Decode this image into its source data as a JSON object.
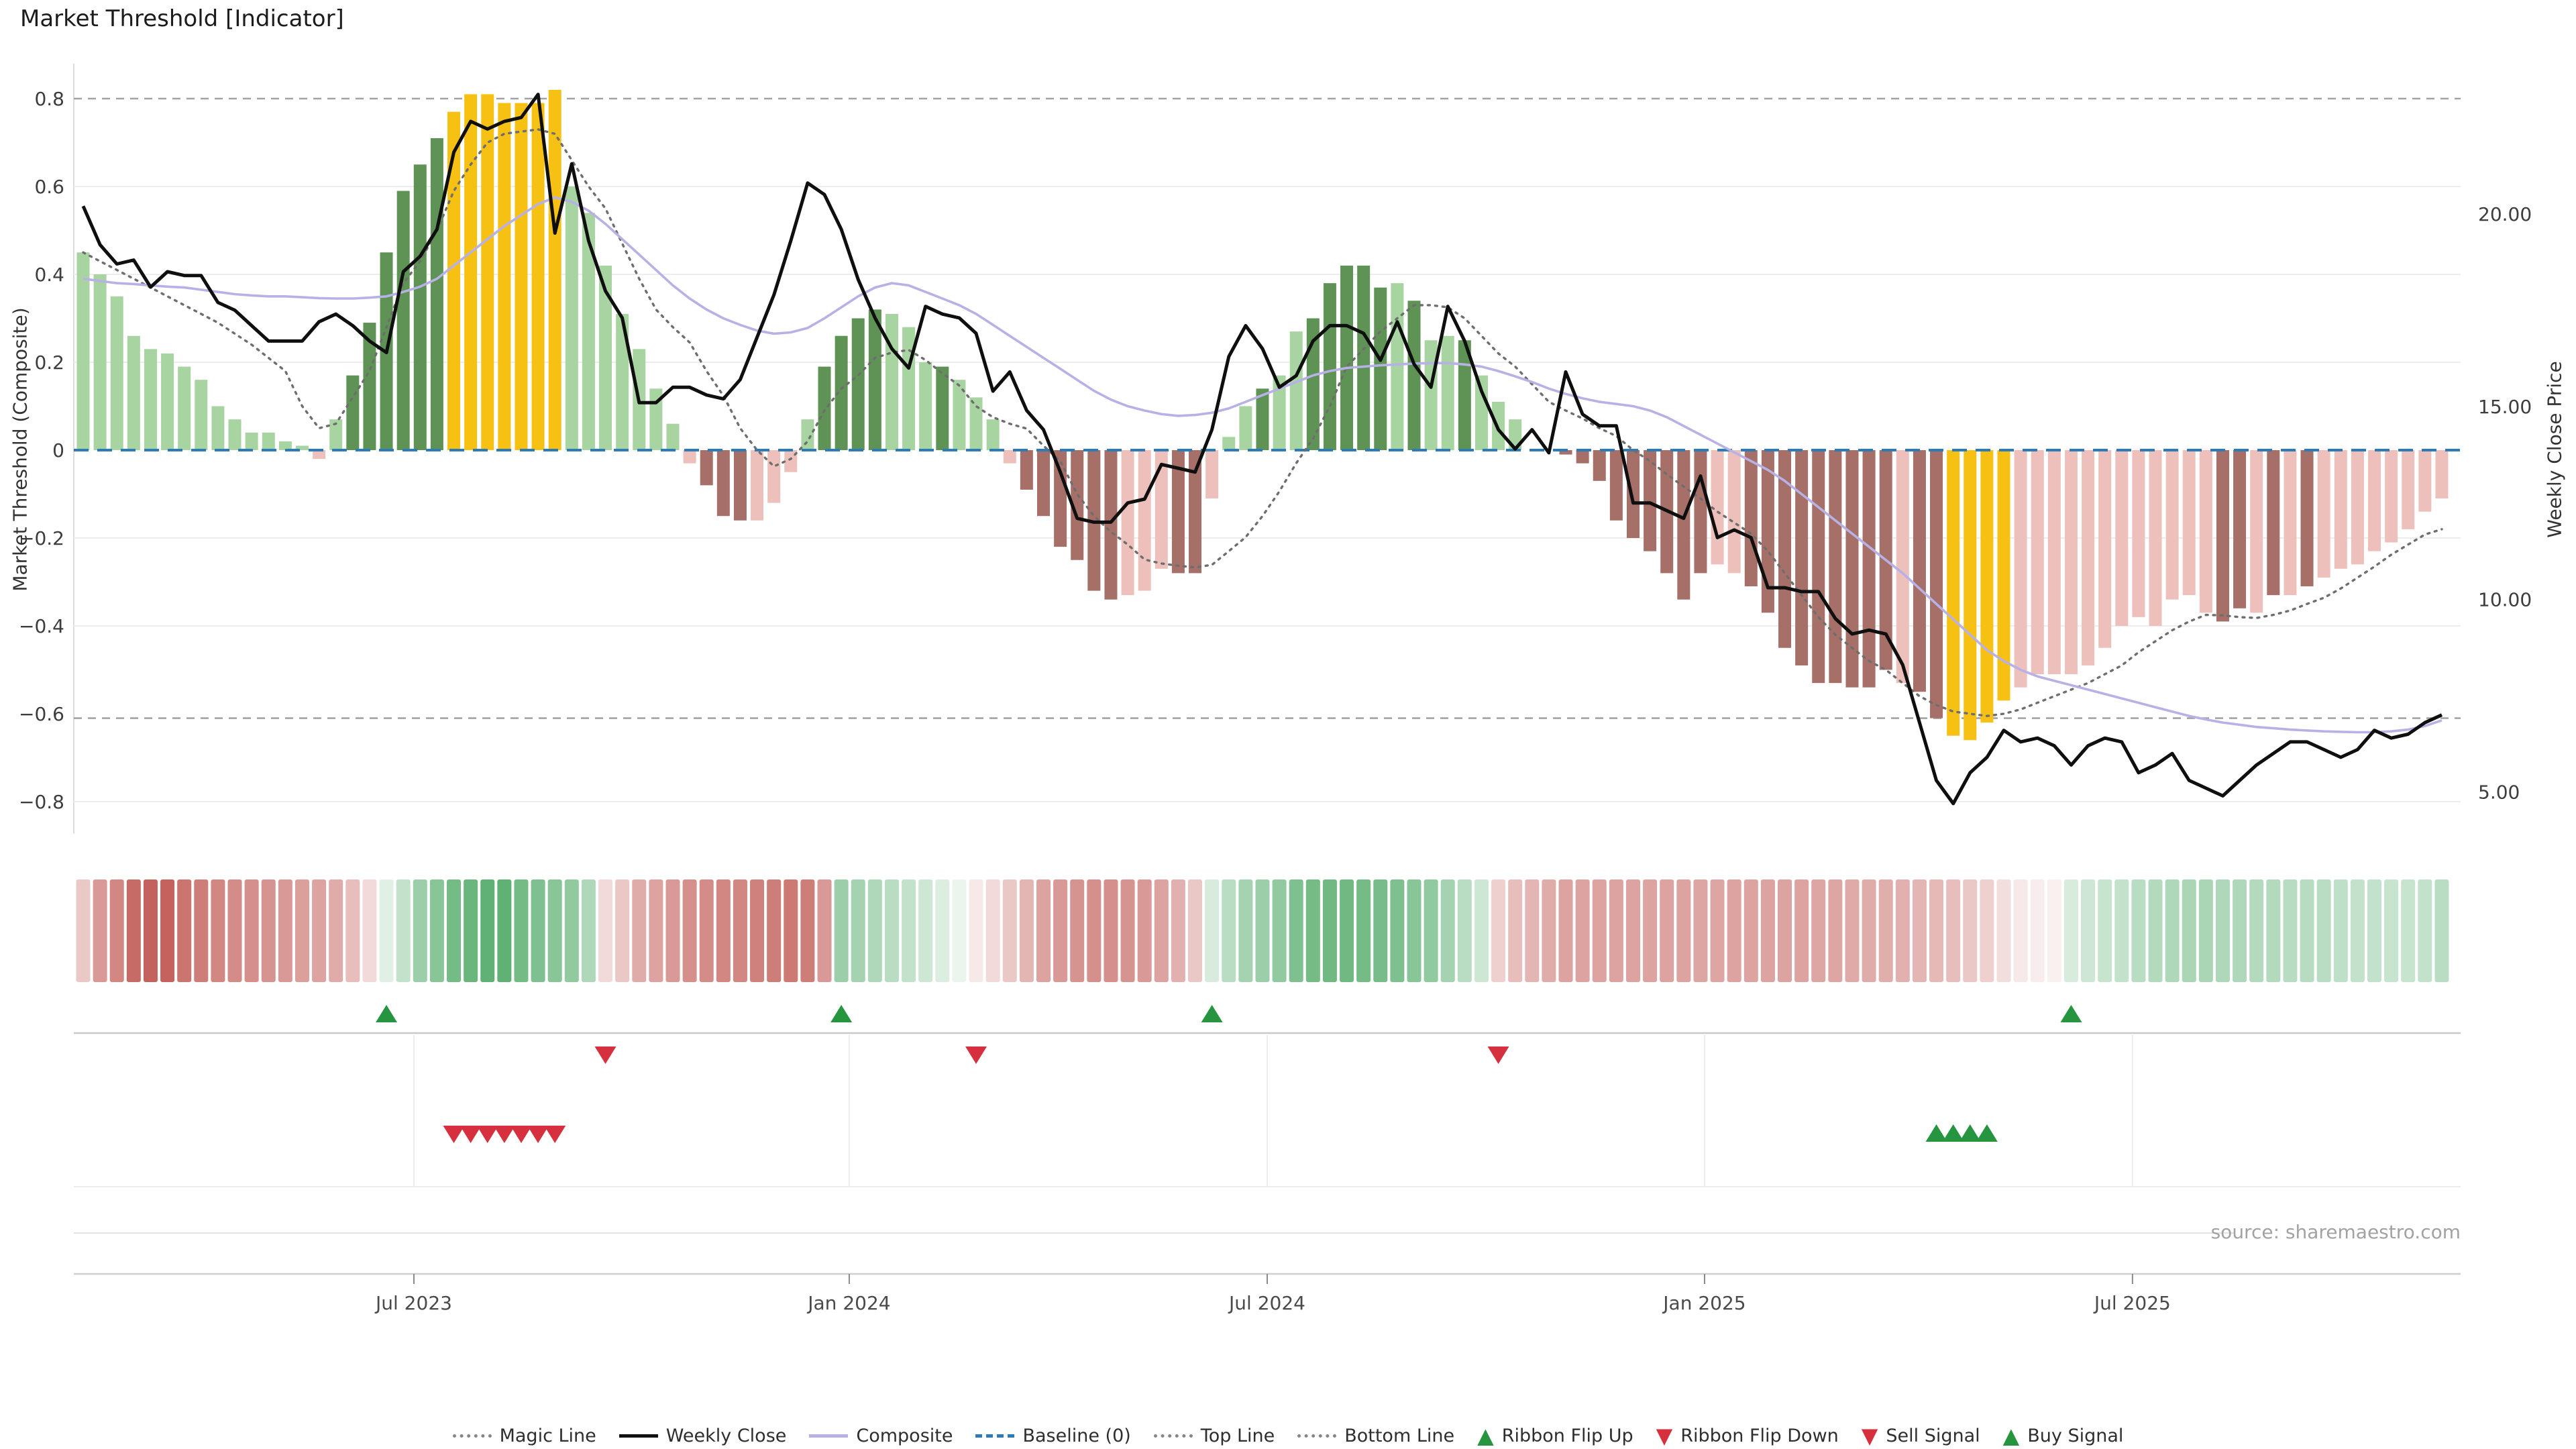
{
  "title": "Market Threshold [Indicator]",
  "source_note": "source: sharemaestro.com",
  "left_axis": {
    "label": "Market Threshold (Composite)",
    "tick_values": [
      0.8,
      0.6,
      0.4,
      0.2,
      0,
      -0.2,
      -0.4,
      -0.6,
      -0.8
    ],
    "tick_labels": [
      "0.8",
      "0.6",
      "0.4",
      "0.2",
      "0",
      "−0.2",
      "−0.4",
      "−0.6",
      "−0.8"
    ]
  },
  "right_axis": {
    "label": "Weekly Close Price",
    "tick_values": [
      20,
      15,
      10,
      5
    ],
    "tick_labels": [
      "20.00",
      "15.00",
      "10.00",
      "5.00"
    ]
  },
  "x_axis": {
    "tick_labels": [
      "Jul 2023",
      "Jan 2024",
      "Jul 2024",
      "Jan 2025",
      "Jul 2025"
    ],
    "tick_weeks": [
      19.63,
      45.47,
      70.28,
      96.24,
      121.64
    ]
  },
  "colors": {
    "bar_light_green": "#a7d4a0",
    "bar_dark_green": "#5f9355",
    "bar_yellow": "#f6c112",
    "bar_light_red": "#eec0bb",
    "bar_dark_red": "#a66f68",
    "close_line": "#0f0f0f",
    "composite_line": "#b7b1e6",
    "magic_line": "#6e6e6e",
    "baseline": "#2b7cb8",
    "band_lines": "#a3a3a3",
    "grid": "#ededed",
    "signal_green": "#27953f",
    "signal_red": "#d62f3e",
    "ribbon_green_base": [
      56,
      158,
      82
    ],
    "ribbon_red_base": [
      185,
      70,
      64
    ]
  },
  "legend": [
    {
      "marker": "dotted-gray",
      "label": "Magic Line"
    },
    {
      "marker": "solid-black",
      "label": "Weekly Close"
    },
    {
      "marker": "solid-lavender",
      "label": "Composite"
    },
    {
      "marker": "dashed-blue",
      "label": "Baseline (0)"
    },
    {
      "marker": "dotted-gray",
      "label": "Top Line"
    },
    {
      "marker": "dotted-gray",
      "label": "Bottom Line"
    },
    {
      "marker": "triangle-up-green",
      "label": "Ribbon Flip Up"
    },
    {
      "marker": "triangle-down-red",
      "label": "Ribbon Flip Down"
    },
    {
      "marker": "triangle-down-red",
      "label": "Sell Signal"
    },
    {
      "marker": "triangle-up-green",
      "label": "Buy Signal"
    }
  ],
  "chart_data": {
    "type": "bar",
    "subtype": "bar+line dual-axis weekly indicator",
    "n_weeks": 141,
    "ylim_left": [
      -0.9,
      0.88
    ],
    "top_line_value": 0.8,
    "bottom_line_value": -0.61,
    "baseline_value": 0,
    "grid_values": [
      0.6,
      0.4,
      0.2,
      -0.2,
      -0.4,
      -0.8
    ],
    "series": [
      {
        "name": "Market Threshold (Composite) bars",
        "axis": "left",
        "values": [
          0.45,
          0.4,
          0.35,
          0.26,
          0.23,
          0.22,
          0.19,
          0.16,
          0.1,
          0.07,
          0.04,
          0.04,
          0.02,
          0.01,
          -0.02,
          0.07,
          0.17,
          0.29,
          0.45,
          0.59,
          0.65,
          0.71,
          0.77,
          0.81,
          0.81,
          0.79,
          0.79,
          0.79,
          0.82,
          0.6,
          0.54,
          0.42,
          0.31,
          0.23,
          0.14,
          0.06,
          -0.03,
          -0.08,
          -0.15,
          -0.16,
          -0.16,
          -0.12,
          -0.05,
          0.07,
          0.19,
          0.26,
          0.3,
          0.32,
          0.31,
          0.28,
          0.2,
          0.19,
          0.16,
          0.12,
          0.07,
          -0.03,
          -0.09,
          -0.15,
          -0.22,
          -0.25,
          -0.32,
          -0.34,
          -0.33,
          -0.32,
          -0.27,
          -0.28,
          -0.28,
          -0.11,
          0.03,
          0.1,
          0.14,
          0.17,
          0.27,
          0.3,
          0.38,
          0.42,
          0.42,
          0.37,
          0.38,
          0.34,
          0.25,
          0.26,
          0.25,
          0.17,
          0.11,
          0.07,
          0.0,
          -0.04,
          -0.01,
          -0.03,
          -0.07,
          -0.16,
          -0.2,
          -0.23,
          -0.28,
          -0.34,
          -0.28,
          -0.26,
          -0.28,
          -0.31,
          -0.37,
          -0.45,
          -0.49,
          -0.53,
          -0.53,
          -0.54,
          -0.54,
          -0.5,
          -0.53,
          -0.55,
          -0.61,
          -0.65,
          -0.66,
          -0.62,
          -0.57,
          -0.54,
          -0.51,
          -0.51,
          -0.51,
          -0.49,
          -0.45,
          -0.4,
          -0.38,
          -0.4,
          -0.34,
          -0.33,
          -0.37,
          -0.39,
          -0.36,
          -0.37,
          -0.33,
          -0.33,
          -0.31,
          -0.29,
          -0.27,
          -0.26,
          -0.23,
          -0.21,
          -0.18,
          -0.14,
          -0.11
        ],
        "color_codes": "llllllllllllllpldddddd yyyyyyylllllllprrrppplddddllldlllprrrrrrppprrplldlldddddldlldllllzrrrrrrrrrpprrrrrrrrrprryyyypppppppppppprrprprppppppppp"
      },
      {
        "name": "Weekly Close",
        "axis": "right",
        "values": [
          20.2,
          19.2,
          18.7,
          18.8,
          18.1,
          18.5,
          18.4,
          18.4,
          17.7,
          17.5,
          17.1,
          16.7,
          16.7,
          16.7,
          17.2,
          17.4,
          17.1,
          16.7,
          16.4,
          18.5,
          18.9,
          19.6,
          21.6,
          22.4,
          22.2,
          22.4,
          22.5,
          23.1,
          19.5,
          21.3,
          19.3,
          18.0,
          17.3,
          15.1,
          15.1,
          15.5,
          15.5,
          15.3,
          15.2,
          15.7,
          16.8,
          17.9,
          19.3,
          20.8,
          20.5,
          19.6,
          18.3,
          17.3,
          16.5,
          16.0,
          17.6,
          17.4,
          17.3,
          16.9,
          15.4,
          15.9,
          14.9,
          14.4,
          13.3,
          12.1,
          12.0,
          12.0,
          12.5,
          12.6,
          13.5,
          13.4,
          13.3,
          14.4,
          16.3,
          17.1,
          16.5,
          15.5,
          15.8,
          16.7,
          17.1,
          17.1,
          16.9,
          16.2,
          17.2,
          16.1,
          15.5,
          17.6,
          16.7,
          15.4,
          14.4,
          13.9,
          14.4,
          13.8,
          15.9,
          14.8,
          14.5,
          14.5,
          12.5,
          12.5,
          12.3,
          12.1,
          13.2,
          11.6,
          11.8,
          11.6,
          10.3,
          10.3,
          10.2,
          10.2,
          9.5,
          9.1,
          9.2,
          9.1,
          8.3,
          6.8,
          5.3,
          4.7,
          5.5,
          5.9,
          6.6,
          6.3,
          6.4,
          6.2,
          5.7,
          6.2,
          6.4,
          6.3,
          5.5,
          5.7,
          6.0,
          5.3,
          5.1,
          4.9,
          5.3,
          5.7,
          6.0,
          6.3,
          6.3,
          6.1,
          5.9,
          6.1,
          6.6,
          6.4,
          6.5,
          6.8,
          7.0
        ]
      },
      {
        "name": "Composite",
        "axis": "left",
        "values": [
          0.39,
          0.385,
          0.38,
          0.378,
          0.375,
          0.372,
          0.37,
          0.365,
          0.36,
          0.355,
          0.352,
          0.35,
          0.35,
          0.348,
          0.346,
          0.345,
          0.345,
          0.347,
          0.35,
          0.36,
          0.372,
          0.39,
          0.42,
          0.45,
          0.48,
          0.51,
          0.535,
          0.56,
          0.575,
          0.565,
          0.545,
          0.515,
          0.48,
          0.445,
          0.41,
          0.375,
          0.345,
          0.32,
          0.3,
          0.285,
          0.272,
          0.265,
          0.268,
          0.278,
          0.3,
          0.325,
          0.35,
          0.37,
          0.38,
          0.375,
          0.36,
          0.345,
          0.33,
          0.31,
          0.285,
          0.26,
          0.235,
          0.21,
          0.185,
          0.16,
          0.135,
          0.115,
          0.1,
          0.09,
          0.082,
          0.078,
          0.08,
          0.085,
          0.095,
          0.11,
          0.125,
          0.14,
          0.155,
          0.17,
          0.18,
          0.187,
          0.19,
          0.193,
          0.195,
          0.197,
          0.198,
          0.198,
          0.195,
          0.19,
          0.18,
          0.168,
          0.155,
          0.14,
          0.128,
          0.118,
          0.11,
          0.105,
          0.1,
          0.09,
          0.075,
          0.055,
          0.035,
          0.015,
          -0.005,
          -0.025,
          -0.045,
          -0.07,
          -0.1,
          -0.13,
          -0.16,
          -0.19,
          -0.22,
          -0.25,
          -0.28,
          -0.315,
          -0.35,
          -0.385,
          -0.42,
          -0.455,
          -0.48,
          -0.5,
          -0.515,
          -0.525,
          -0.535,
          -0.545,
          -0.555,
          -0.565,
          -0.575,
          -0.585,
          -0.595,
          -0.605,
          -0.613,
          -0.62,
          -0.625,
          -0.63,
          -0.633,
          -0.636,
          -0.638,
          -0.64,
          -0.641,
          -0.642,
          -0.642,
          -0.64,
          -0.636,
          -0.628,
          -0.615
        ]
      },
      {
        "name": "Magic Line",
        "axis": "left",
        "values": [
          0.45,
          0.43,
          0.41,
          0.39,
          0.37,
          0.35,
          0.33,
          0.31,
          0.29,
          0.265,
          0.24,
          0.21,
          0.18,
          0.1,
          0.05,
          0.06,
          0.12,
          0.18,
          0.28,
          0.38,
          0.43,
          0.5,
          0.59,
          0.65,
          0.7,
          0.72,
          0.725,
          0.73,
          0.72,
          0.66,
          0.6,
          0.55,
          0.47,
          0.39,
          0.32,
          0.28,
          0.245,
          0.18,
          0.124,
          0.05,
          0.0,
          -0.037,
          -0.02,
          0.02,
          0.09,
          0.14,
          0.17,
          0.21,
          0.222,
          0.228,
          0.205,
          0.175,
          0.147,
          0.1,
          0.075,
          0.06,
          0.049,
          0.01,
          -0.025,
          -0.1,
          -0.15,
          -0.186,
          -0.215,
          -0.249,
          -0.258,
          -0.263,
          -0.267,
          -0.261,
          -0.23,
          -0.198,
          -0.15,
          -0.094,
          -0.03,
          0.026,
          0.1,
          0.19,
          0.23,
          0.27,
          0.3,
          0.33,
          0.33,
          0.325,
          0.3,
          0.26,
          0.22,
          0.19,
          0.15,
          0.11,
          0.09,
          0.072,
          0.05,
          0.032,
          0.0,
          -0.025,
          -0.055,
          -0.083,
          -0.11,
          -0.14,
          -0.165,
          -0.19,
          -0.23,
          -0.28,
          -0.33,
          -0.38,
          -0.42,
          -0.45,
          -0.48,
          -0.5,
          -0.53,
          -0.56,
          -0.58,
          -0.595,
          -0.6,
          -0.605,
          -0.6,
          -0.59,
          -0.575,
          -0.56,
          -0.545,
          -0.53,
          -0.51,
          -0.49,
          -0.46,
          -0.435,
          -0.41,
          -0.39,
          -0.375,
          -0.376,
          -0.38,
          -0.382,
          -0.375,
          -0.365,
          -0.35,
          -0.336,
          -0.315,
          -0.29,
          -0.265,
          -0.238,
          -0.215,
          -0.192,
          -0.18
        ]
      }
    ],
    "ribbon": [
      -0.3,
      -0.55,
      -0.65,
      -0.8,
      -0.85,
      -0.85,
      -0.75,
      -0.7,
      -0.65,
      -0.62,
      -0.6,
      -0.58,
      -0.55,
      -0.52,
      -0.5,
      -0.45,
      -0.35,
      -0.2,
      0.15,
      0.3,
      0.5,
      0.6,
      0.7,
      0.75,
      0.8,
      0.8,
      0.7,
      0.65,
      0.6,
      0.55,
      0.4,
      -0.2,
      -0.3,
      -0.45,
      -0.5,
      -0.55,
      -0.6,
      -0.62,
      -0.65,
      -0.65,
      -0.68,
      -0.7,
      -0.72,
      -0.7,
      -0.55,
      0.5,
      0.45,
      0.4,
      0.35,
      0.3,
      0.25,
      0.18,
      0.1,
      -0.12,
      -0.2,
      -0.3,
      -0.4,
      -0.5,
      -0.55,
      -0.58,
      -0.6,
      -0.6,
      -0.58,
      -0.55,
      -0.5,
      -0.42,
      -0.3,
      0.2,
      0.35,
      0.45,
      0.5,
      0.55,
      0.65,
      0.7,
      0.72,
      0.72,
      0.7,
      0.68,
      0.65,
      0.6,
      0.55,
      0.45,
      0.35,
      0.25,
      -0.25,
      -0.35,
      -0.4,
      -0.45,
      -0.5,
      -0.5,
      -0.5,
      -0.5,
      -0.5,
      -0.5,
      -0.5,
      -0.5,
      -0.48,
      -0.48,
      -0.5,
      -0.5,
      -0.5,
      -0.5,
      -0.5,
      -0.48,
      -0.48,
      -0.46,
      -0.45,
      -0.44,
      -0.42,
      -0.4,
      -0.38,
      -0.35,
      -0.3,
      -0.25,
      -0.18,
      -0.12,
      -0.1,
      -0.08,
      0.2,
      0.25,
      0.28,
      0.3,
      0.35,
      0.38,
      0.4,
      0.42,
      0.42,
      0.4,
      0.4,
      0.38,
      0.38,
      0.36,
      0.36,
      0.35,
      0.32,
      0.3,
      0.3,
      0.28,
      0.28,
      0.3,
      0.35
    ],
    "signals": {
      "ribbon_flip_up_weeks": [
        18,
        45,
        67,
        118
      ],
      "ribbon_flip_down_weeks": [
        31,
        53,
        84
      ],
      "sell_signal_weeks": [
        22,
        23,
        24,
        25,
        26,
        27,
        28
      ],
      "buy_signal_weeks": [
        110,
        111,
        112,
        113
      ]
    }
  }
}
